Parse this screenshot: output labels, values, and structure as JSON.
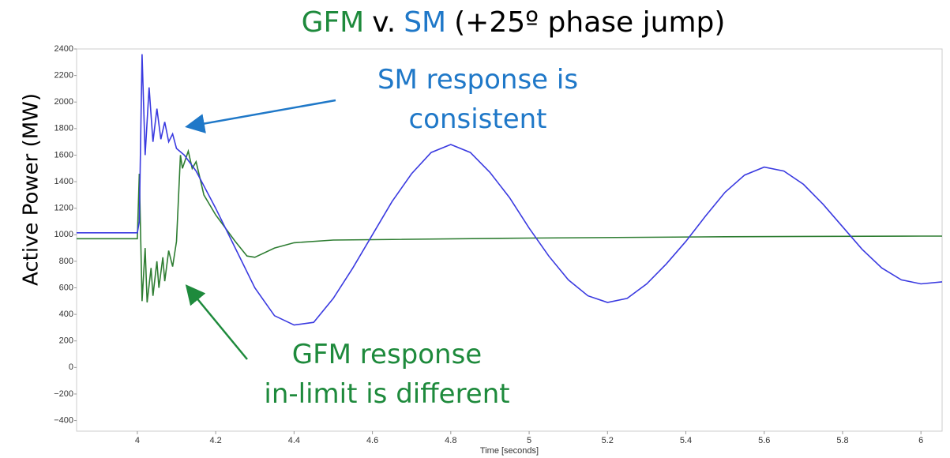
{
  "chart_data": {
    "type": "line",
    "title": [
      "GFM",
      "v.",
      "SM",
      "(+25º phase jump)"
    ],
    "title_colors": [
      "#1e8a3c",
      "#000000",
      "#1f78c8",
      "#000000"
    ],
    "ylabel": "Active Power (MW)",
    "xlabel": "Time [seconds]",
    "annotations": [
      {
        "lines": [
          "SM response is",
          "consistent"
        ],
        "color": "#1f78c8"
      },
      {
        "lines": [
          "GFM response",
          "in-limit is different"
        ],
        "color": "#1e8a3c"
      }
    ],
    "xlim": [
      3.845,
      6.054
    ],
    "ylim": [
      -480,
      2400
    ],
    "xticks": [
      4,
      4.2,
      4.4,
      4.6,
      4.8,
      5,
      5.2,
      5.4,
      5.6,
      5.8,
      6
    ],
    "yticks": [
      {
        "value": -400,
        "label": "−400"
      },
      {
        "value": -200,
        "label": "−200"
      },
      0,
      200,
      400,
      600,
      800,
      1000,
      1200,
      1400,
      1600,
      1800,
      2000,
      2200,
      2400
    ],
    "grid": false,
    "series": [
      {
        "name": "SM",
        "color": "#3a3ae0",
        "x": [
          3.845,
          4.0,
          4.005,
          4.012,
          4.02,
          4.03,
          4.04,
          4.05,
          4.06,
          4.07,
          4.08,
          4.09,
          4.1,
          4.12,
          4.15,
          4.2,
          4.25,
          4.3,
          4.35,
          4.4,
          4.45,
          4.5,
          4.55,
          4.6,
          4.65,
          4.7,
          4.75,
          4.8,
          4.85,
          4.9,
          4.95,
          5.0,
          5.05,
          5.1,
          5.15,
          5.2,
          5.25,
          5.3,
          5.35,
          5.4,
          5.45,
          5.5,
          5.55,
          5.6,
          5.65,
          5.7,
          5.75,
          5.8,
          5.85,
          5.9,
          5.95,
          6.0,
          6.054
        ],
        "values": [
          1015,
          1015,
          1100,
          2360,
          1600,
          2110,
          1700,
          1950,
          1720,
          1850,
          1700,
          1760,
          1650,
          1600,
          1480,
          1200,
          900,
          600,
          390,
          320,
          340,
          520,
          750,
          1000,
          1250,
          1460,
          1620,
          1680,
          1620,
          1470,
          1280,
          1050,
          840,
          660,
          540,
          490,
          520,
          630,
          780,
          950,
          1140,
          1320,
          1450,
          1510,
          1480,
          1380,
          1230,
          1060,
          890,
          750,
          660,
          630,
          645
        ]
      },
      {
        "name": "GFM",
        "color": "#2e7d32",
        "x": [
          3.845,
          4.0,
          4.005,
          4.012,
          4.02,
          4.025,
          4.035,
          4.04,
          4.05,
          4.055,
          4.065,
          4.07,
          4.08,
          4.09,
          4.1,
          4.11,
          4.115,
          4.13,
          4.14,
          4.15,
          4.17,
          4.2,
          4.25,
          4.28,
          4.3,
          4.35,
          4.4,
          4.5,
          5.0,
          5.5,
          6.0,
          6.054
        ],
        "values": [
          970,
          970,
          1460,
          500,
          900,
          490,
          750,
          540,
          800,
          600,
          830,
          650,
          880,
          760,
          950,
          1600,
          1500,
          1630,
          1500,
          1550,
          1300,
          1150,
          950,
          840,
          830,
          900,
          940,
          960,
          975,
          985,
          990,
          990
        ]
      }
    ]
  }
}
